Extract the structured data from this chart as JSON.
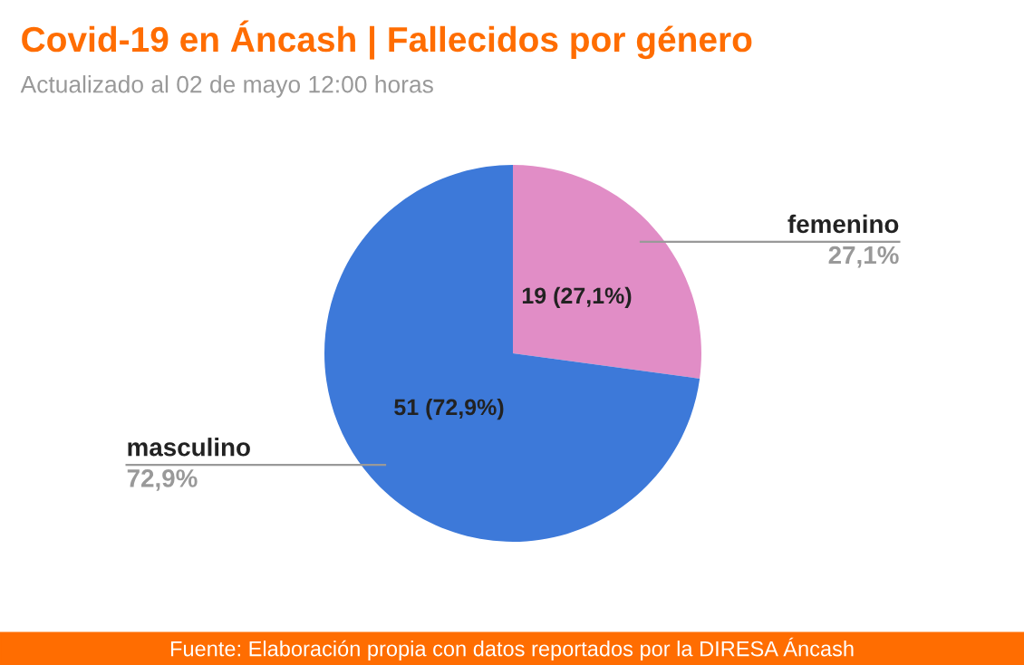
{
  "chart_data": {
    "type": "pie",
    "title": "Covid-19 en Áncash | Fallecidos por género",
    "subtitle": "Actualizado al 02 de mayo 12:00 horas",
    "categories": [
      "femenino",
      "masculino"
    ],
    "values": [
      19,
      51
    ],
    "colors": [
      "#e18dc6",
      "#3d79d9"
    ],
    "value_labels": [
      "19 (27,1%)",
      "51 (72,9%)"
    ],
    "annotations": [
      "27,1%",
      "72,9%",
      "Fuente: Elaboración propia con datos reportados por la DIRESA Áncash"
    ],
    "legend": false
  }
}
